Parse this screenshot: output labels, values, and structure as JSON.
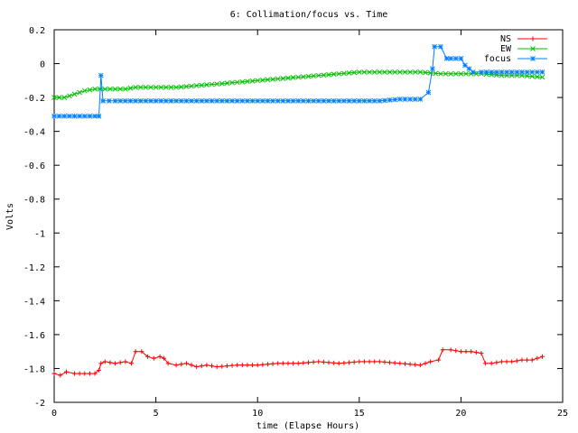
{
  "chart_data": {
    "type": "line",
    "title": "6: Collimation/focus vs. Time",
    "xlabel": "time (Elapse Hours)",
    "ylabel": "Volts",
    "xlim": [
      0,
      25
    ],
    "ylim": [
      -2,
      0.2
    ],
    "x_ticks": [
      "0",
      "5",
      "10",
      "15",
      "20",
      "25"
    ],
    "y_ticks": [
      "0.2",
      "0",
      "-0.2",
      "-0.4",
      "-0.6",
      "-0.8",
      "-1",
      "-1.2",
      "-1.4",
      "-1.6",
      "-1.8",
      "-2"
    ],
    "grid": false,
    "legend_position": "top-right",
    "series": [
      {
        "name": "NS",
        "color": "#ff0000",
        "marker": "plus",
        "x": [
          0,
          0.3,
          0.6,
          1.0,
          1.5,
          2.0,
          2.2,
          2.3,
          2.5,
          3.0,
          3.5,
          3.8,
          4.0,
          4.3,
          4.6,
          4.9,
          5.2,
          5.4,
          5.6,
          6.0,
          6.5,
          7.0,
          7.5,
          8.0,
          9.0,
          10.0,
          11.0,
          12.0,
          13.0,
          14.0,
          15.0,
          16.0,
          17.0,
          18.0,
          18.5,
          18.9,
          19.1,
          19.5,
          20.0,
          20.5,
          21.0,
          21.2,
          21.5,
          22.0,
          22.5,
          23.0,
          23.5,
          24.0
        ],
        "y": [
          -1.83,
          -1.84,
          -1.82,
          -1.83,
          -1.83,
          -1.83,
          -1.81,
          -1.77,
          -1.76,
          -1.77,
          -1.76,
          -1.77,
          -1.7,
          -1.7,
          -1.73,
          -1.74,
          -1.73,
          -1.74,
          -1.77,
          -1.78,
          -1.77,
          -1.79,
          -1.78,
          -1.79,
          -1.78,
          -1.78,
          -1.77,
          -1.77,
          -1.76,
          -1.77,
          -1.76,
          -1.76,
          -1.77,
          -1.78,
          -1.76,
          -1.75,
          -1.69,
          -1.69,
          -1.7,
          -1.7,
          -1.71,
          -1.77,
          -1.77,
          -1.76,
          -1.76,
          -1.75,
          -1.75,
          -1.73
        ]
      },
      {
        "name": "EW",
        "color": "#00c000",
        "marker": "cross",
        "x": [
          0,
          0.5,
          1.0,
          1.5,
          2.0,
          2.5,
          3.0,
          3.5,
          4.0,
          5.0,
          6.0,
          7.0,
          8.0,
          9.0,
          10.0,
          11.0,
          12.0,
          13.0,
          14.0,
          15.0,
          16.0,
          17.0,
          18.0,
          19.0,
          20.0,
          21.0,
          22.0,
          23.0,
          24.0
        ],
        "y": [
          -0.2,
          -0.2,
          -0.18,
          -0.16,
          -0.15,
          -0.15,
          -0.15,
          -0.15,
          -0.14,
          -0.14,
          -0.14,
          -0.13,
          -0.12,
          -0.11,
          -0.1,
          -0.09,
          -0.08,
          -0.07,
          -0.06,
          -0.05,
          -0.05,
          -0.05,
          -0.05,
          -0.06,
          -0.06,
          -0.06,
          -0.07,
          -0.07,
          -0.08
        ]
      },
      {
        "name": "focus",
        "color": "#0080ff",
        "marker": "star",
        "x": [
          0,
          0.5,
          1.0,
          1.5,
          2.0,
          2.2,
          2.3,
          2.4,
          3.0,
          4.0,
          5.0,
          6.0,
          7.0,
          8.0,
          9.0,
          10.0,
          11.0,
          12.0,
          13.0,
          14.0,
          15.0,
          16.0,
          17.0,
          18.0,
          18.4,
          18.6,
          18.7,
          19.0,
          19.3,
          19.5,
          20.0,
          20.2,
          20.4,
          20.6,
          21.0,
          22.0,
          23.0,
          24.0
        ],
        "y": [
          -0.31,
          -0.31,
          -0.31,
          -0.31,
          -0.31,
          -0.31,
          -0.07,
          -0.22,
          -0.22,
          -0.22,
          -0.22,
          -0.22,
          -0.22,
          -0.22,
          -0.22,
          -0.22,
          -0.22,
          -0.22,
          -0.22,
          -0.22,
          -0.22,
          -0.22,
          -0.21,
          -0.21,
          -0.17,
          -0.03,
          0.1,
          0.1,
          0.03,
          0.03,
          0.03,
          -0.01,
          -0.03,
          -0.05,
          -0.05,
          -0.05,
          -0.05,
          -0.05
        ]
      }
    ]
  }
}
